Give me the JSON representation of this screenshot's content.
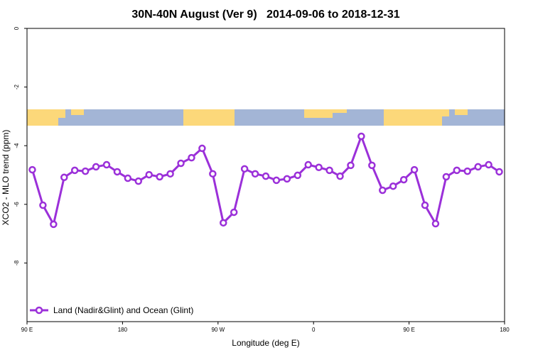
{
  "chart_data": {
    "type": "line",
    "title": "30N-40N August (Ver 9)   2014-09-06 to 2018-12-31",
    "xlabel": "Longitude (deg E)",
    "ylabel": "XCO2 - MLO trend (ppm)",
    "x": [
      95,
      105,
      115,
      125,
      135,
      145,
      155,
      165,
      175,
      185,
      195,
      205,
      215,
      225,
      235,
      245,
      255,
      265,
      275,
      285,
      295,
      305,
      315,
      325,
      335,
      345,
      355,
      365,
      375,
      385,
      395,
      405,
      415,
      425,
      435,
      445,
      455,
      465,
      475,
      485,
      495,
      505,
      515,
      525,
      535
    ],
    "series": [
      {
        "name": "Land (Nadir&Glint) and Ocean (Glint)",
        "color": "#9b30d9",
        "values": [
          -4.82,
          -6.03,
          -6.68,
          -5.08,
          -4.84,
          -4.87,
          -4.72,
          -4.65,
          -4.89,
          -5.11,
          -5.21,
          -4.99,
          -5.06,
          -4.96,
          -4.6,
          -4.41,
          -4.09,
          -4.96,
          -6.63,
          -6.27,
          -4.79,
          -4.96,
          -5.04,
          -5.18,
          -5.13,
          -5.01,
          -4.65,
          -4.74,
          -4.84,
          -5.04,
          -4.67,
          -3.68,
          -4.67,
          -5.52,
          -5.38,
          -5.16,
          -4.82,
          -6.03,
          -6.66,
          -5.06,
          -4.84,
          -4.87,
          -4.72,
          -4.65,
          -4.89
        ]
      }
    ],
    "xlim": [
      90,
      540
    ],
    "xticks": [
      {
        "value": 90,
        "label": "90 E"
      },
      180,
      {
        "value": 270,
        "label": "90 W"
      },
      {
        "value": 360,
        "label": "0"
      },
      {
        "value": 450,
        "label": "90 E"
      },
      {
        "value": 540,
        "label": "180"
      }
    ],
    "ylim": [
      -10,
      0
    ],
    "yticks": [
      0,
      -2,
      -4,
      -6,
      -8
    ],
    "legend": "lower left"
  }
}
